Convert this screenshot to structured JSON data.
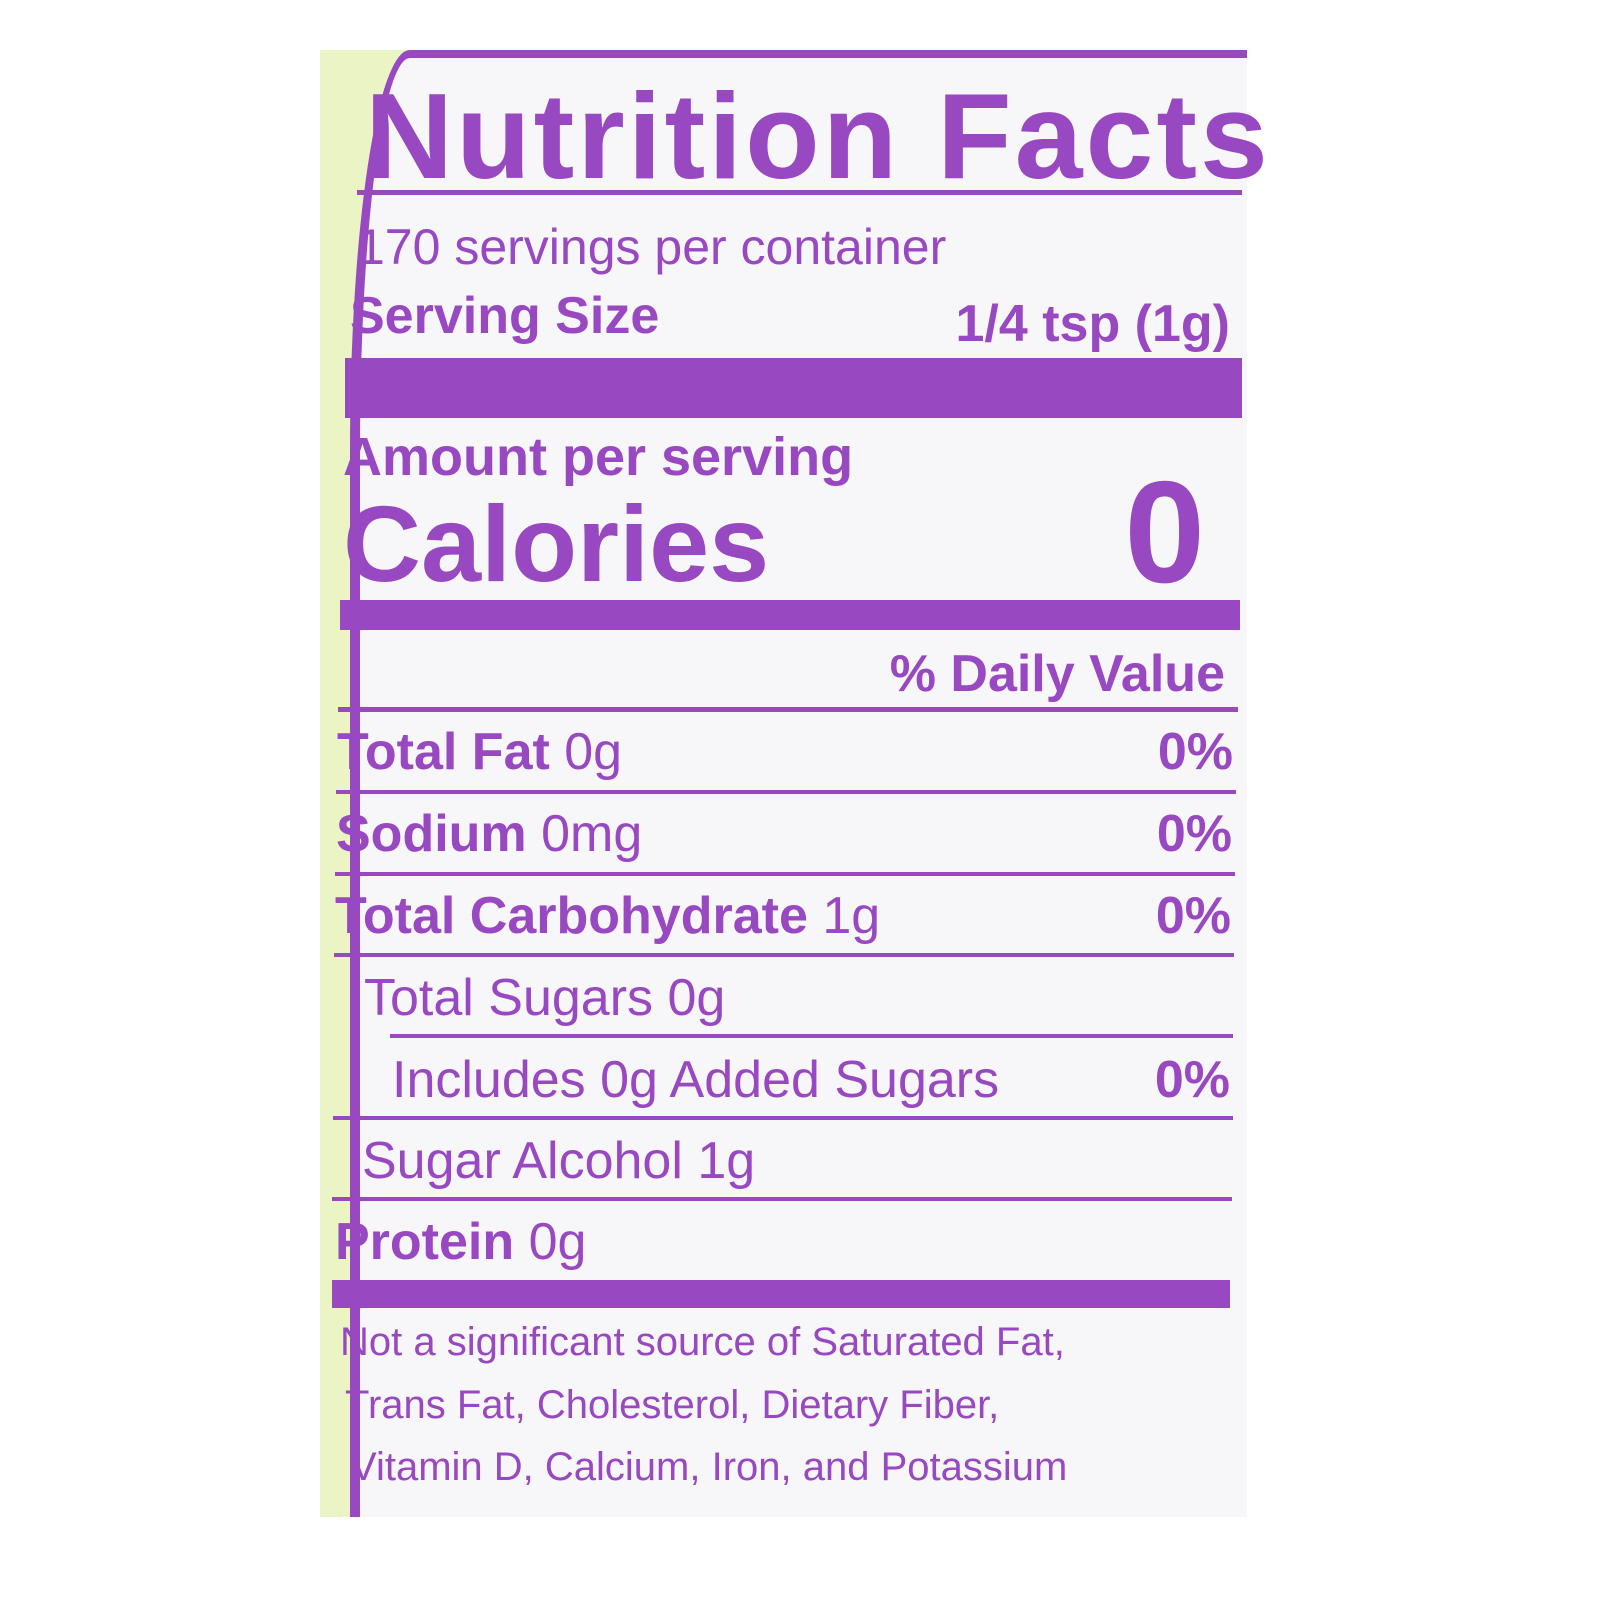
{
  "label": {
    "title": "Nutrition Facts",
    "servings_per_container": "170 servings per container",
    "serving_size_label": "Serving Size",
    "serving_size_value": "1/4 tsp (1g)",
    "amount_per_serving": "Amount per serving",
    "calories_label": "Calories",
    "calories_value": "0",
    "daily_value_header": "% Daily Value",
    "rows": [
      {
        "name": "Total Fat",
        "amount": "0g",
        "dv": "0%"
      },
      {
        "name": "Sodium",
        "amount": "0mg",
        "dv": "0%"
      },
      {
        "name": "Total Carbohydrate",
        "amount": "1g",
        "dv": "0%"
      },
      {
        "name": "",
        "amount": "Total Sugars 0g",
        "dv": ""
      },
      {
        "name": "",
        "amount": "Includes 0g Added Sugars",
        "dv": "0%"
      },
      {
        "name": "",
        "amount": "Sugar Alcohol 1g",
        "dv": ""
      },
      {
        "name": "Protein",
        "amount": "0g",
        "dv": ""
      }
    ],
    "footnote": [
      "Not a significant source of Saturated Fat,",
      "Trans Fat, Cholesterol, Dietary Fiber,",
      "Vitamin D, Calcium, Iron, and Potassium"
    ]
  },
  "colors": {
    "ink": "#9848c0",
    "label_bg": "#f7f6f8",
    "container": "#eaf4c4"
  }
}
